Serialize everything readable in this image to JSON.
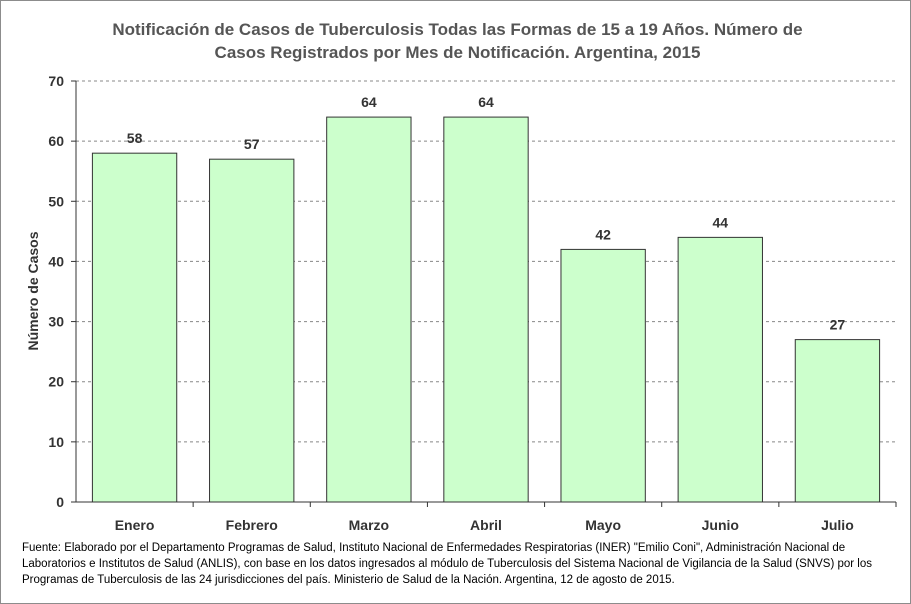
{
  "chart_data": {
    "type": "bar",
    "title_line1": "Notificación de Casos de Tuberculosis Todas las Formas de 15 a 19 Años. Número de",
    "title_line2": "Casos Registrados por Mes de Notificación. Argentina, 2015",
    "xlabel": "",
    "ylabel": "Número de Casos",
    "categories": [
      "Enero",
      "Febrero",
      "Marzo",
      "Abril",
      "Mayo",
      "Junio",
      "Julio"
    ],
    "values": [
      58,
      57,
      64,
      64,
      42,
      44,
      27
    ],
    "ylim": [
      0,
      70
    ],
    "yticks": [
      0,
      10,
      20,
      30,
      40,
      50,
      60,
      70
    ],
    "grid": "horizontal dashed",
    "legend": "none",
    "colors": {
      "bar_fill": "#ccffcc",
      "bar_stroke": "#333333",
      "grid": "#888888"
    }
  },
  "source_note": "Fuente: Elaborado por el Departamento Programas de Salud, Instituto Nacional de Enfermedades Respiratorias (INER) \"Emilio Coni\", Administración Nacional de Laboratorios e Institutos de Salud (ANLIS), con base en los datos ingresados al módulo de Tuberculosis del Sistema Nacional de Vigilancia de la Salud (SNVS) por los Programas de Tuberculosis de las  24 jurisdicciones del país. Ministerio de Salud de la Nación. Argentina,  12 de agosto de 2015."
}
